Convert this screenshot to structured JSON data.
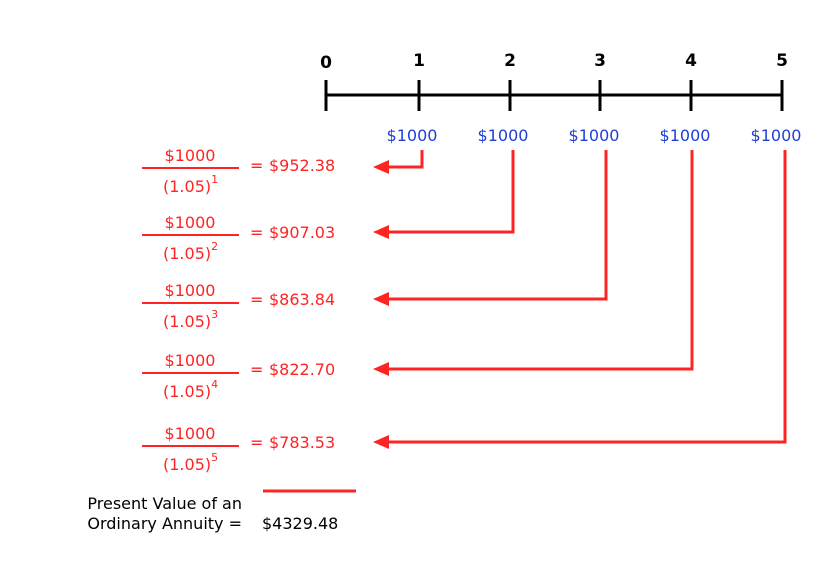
{
  "colors": {
    "axis": "#000000",
    "cashflow": "#1f3fd6",
    "arrow": "#ff2424",
    "text": "#000000"
  },
  "timeline": {
    "ticks": [
      "0",
      "1",
      "2",
      "3",
      "4",
      "5"
    ]
  },
  "cashflows": [
    {
      "period": 1,
      "amount": "$1000"
    },
    {
      "period": 2,
      "amount": "$1000"
    },
    {
      "period": 3,
      "amount": "$1000"
    },
    {
      "period": 4,
      "amount": "$1000"
    },
    {
      "period": 5,
      "amount": "$1000"
    }
  ],
  "discounts": [
    {
      "numerator": "$1000",
      "base": "(1.05)",
      "exponent": "1",
      "equals": "=",
      "pv": "$952.38"
    },
    {
      "numerator": "$1000",
      "base": "(1.05)",
      "exponent": "2",
      "equals": "=",
      "pv": "$907.03"
    },
    {
      "numerator": "$1000",
      "base": "(1.05)",
      "exponent": "3",
      "equals": "=",
      "pv": "$863.84"
    },
    {
      "numerator": "$1000",
      "base": "(1.05)",
      "exponent": "4",
      "equals": "=",
      "pv": "$822.70"
    },
    {
      "numerator": "$1000",
      "base": "(1.05)",
      "exponent": "5",
      "equals": "=",
      "pv": "$783.53"
    }
  ],
  "total": {
    "label_line1": "Present Value of an",
    "label_line2": "Ordinary Annuity =",
    "value": "$4329.48"
  }
}
